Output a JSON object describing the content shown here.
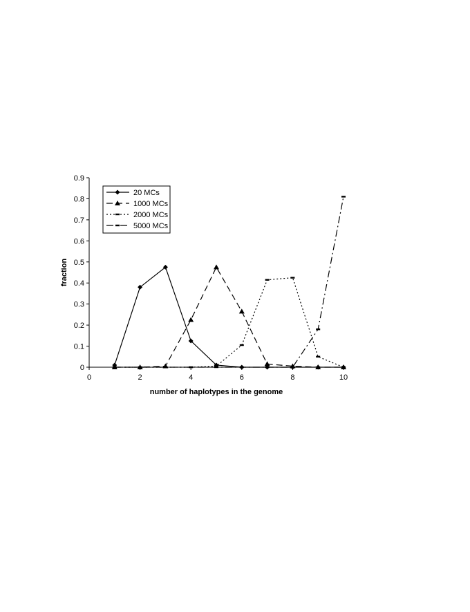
{
  "chart_data": {
    "type": "line",
    "title": "",
    "xlabel": "number of haplotypes in the genome",
    "ylabel": "fraction",
    "xlim": [
      0,
      10
    ],
    "ylim": [
      0,
      0.9
    ],
    "xticks": [
      0,
      2,
      4,
      6,
      8,
      10
    ],
    "yticks": [
      0,
      0.1,
      0.2,
      0.3,
      0.4,
      0.5,
      0.6,
      0.7,
      0.8,
      0.9
    ],
    "xtick_labels": [
      "0",
      "2",
      "4",
      "6",
      "8",
      "10"
    ],
    "ytick_labels": [
      "0",
      "0.1",
      "0.2",
      "0.3",
      "0.4",
      "0.5",
      "0.6",
      "0.7",
      "0.8",
      "0.9"
    ],
    "grid": false,
    "legend_position": "top-left",
    "x": [
      1,
      2,
      3,
      4,
      5,
      6,
      7,
      8,
      9,
      10
    ],
    "series": [
      {
        "name": "20 MCs",
        "values": [
          0.01,
          0.38,
          0.475,
          0.125,
          0.01,
          0.0,
          0.0,
          0.0,
          0.0,
          0.0
        ],
        "line_style": "solid",
        "marker": "diamond"
      },
      {
        "name": "1000 MCs",
        "values": [
          0.0,
          0.0,
          0.005,
          0.225,
          0.475,
          0.265,
          0.015,
          0.005,
          0.0,
          0.0
        ],
        "line_style": "dashed",
        "marker": "triangle"
      },
      {
        "name": "2000 MCs",
        "values": [
          0.0,
          0.0,
          0.0,
          0.0,
          0.005,
          0.105,
          0.415,
          0.425,
          0.05,
          0.0
        ],
        "line_style": "dotted",
        "marker": "dash"
      },
      {
        "name": "5000 MCs",
        "values": [
          0.0,
          0.0,
          0.0,
          0.0,
          0.0,
          0.0,
          0.0,
          0.0,
          0.18,
          0.81
        ],
        "line_style": "dash-dot",
        "marker": "dash"
      }
    ],
    "colors": {
      "line": "#000000",
      "background": "#ffffff"
    }
  }
}
